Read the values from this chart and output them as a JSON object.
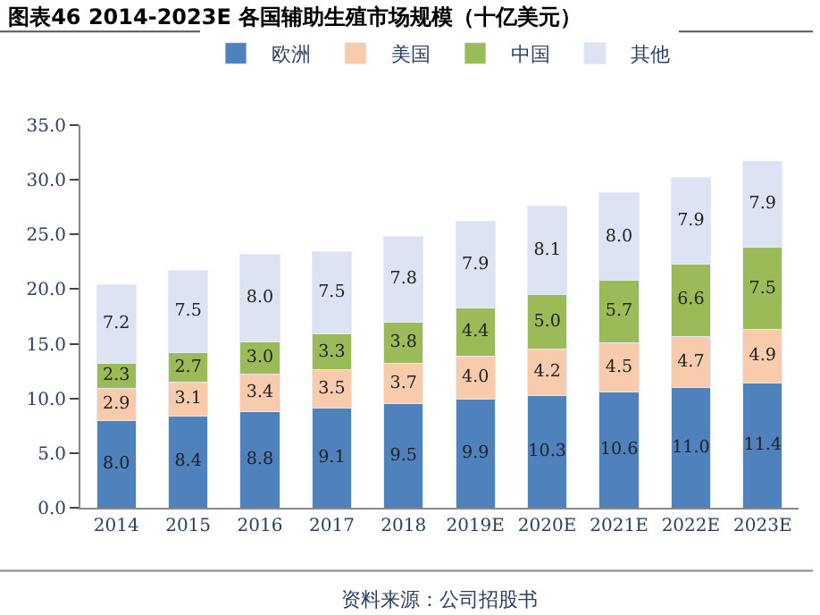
{
  "chart_data": {
    "type": "bar",
    "stacked": true,
    "title": "图表46 2014-2023E 各国辅助生殖市场规模（十亿美元）",
    "categories": [
      "2014",
      "2015",
      "2016",
      "2017",
      "2018",
      "2019E",
      "2020E",
      "2021E",
      "2022E",
      "2023E"
    ],
    "series": [
      {
        "name": "欧洲",
        "color": "#4f81bd",
        "values": [
          8.0,
          8.4,
          8.8,
          9.1,
          9.5,
          9.9,
          10.3,
          10.6,
          11.0,
          11.4
        ],
        "value_labels": [
          "8.0",
          "8.4",
          "8.8",
          "9.1",
          "9.5",
          "9.9",
          "10.3",
          "10.6",
          "11.0",
          "11.4"
        ]
      },
      {
        "name": "美国",
        "color": "#f8cbad",
        "values": [
          2.9,
          3.1,
          3.4,
          3.5,
          3.7,
          4.0,
          4.2,
          4.5,
          4.7,
          4.9
        ],
        "value_labels": [
          "2.9",
          "3.1",
          "3.4",
          "3.5",
          "3.7",
          "4.0",
          "4.2",
          "4.5",
          "4.7",
          "4.9"
        ]
      },
      {
        "name": "中国",
        "color": "#9bbb59",
        "values": [
          2.3,
          2.7,
          3.0,
          3.3,
          3.8,
          4.4,
          5.0,
          5.7,
          6.6,
          7.5
        ],
        "value_labels": [
          "2.3",
          "2.7",
          "3.0",
          "3.3",
          "3.8",
          "4.4",
          "5.0",
          "5.7",
          "6.6",
          "7.5"
        ]
      },
      {
        "name": "其他",
        "color": "#dce3f3",
        "values": [
          7.2,
          7.5,
          8.0,
          7.5,
          7.8,
          7.9,
          8.1,
          8.0,
          7.9,
          7.9
        ],
        "value_labels": [
          "7.2",
          "7.5",
          "8.0",
          "7.5",
          "7.8",
          "7.9",
          "8.1",
          "8.0",
          "7.9",
          "7.9"
        ]
      }
    ],
    "ylim": [
      0,
      35
    ],
    "yticks": [
      {
        "value": 0,
        "label": "0.0"
      },
      {
        "value": 5,
        "label": "5.0"
      },
      {
        "value": 10,
        "label": "10.0"
      },
      {
        "value": 15,
        "label": "15.0"
      },
      {
        "value": 20,
        "label": "20.0"
      },
      {
        "value": 25,
        "label": "25.0"
      },
      {
        "value": 30,
        "label": "30.0"
      },
      {
        "value": 35,
        "label": "35.0"
      }
    ],
    "legend": "top",
    "annotations": [
      "资料来源：公司招股书"
    ]
  }
}
